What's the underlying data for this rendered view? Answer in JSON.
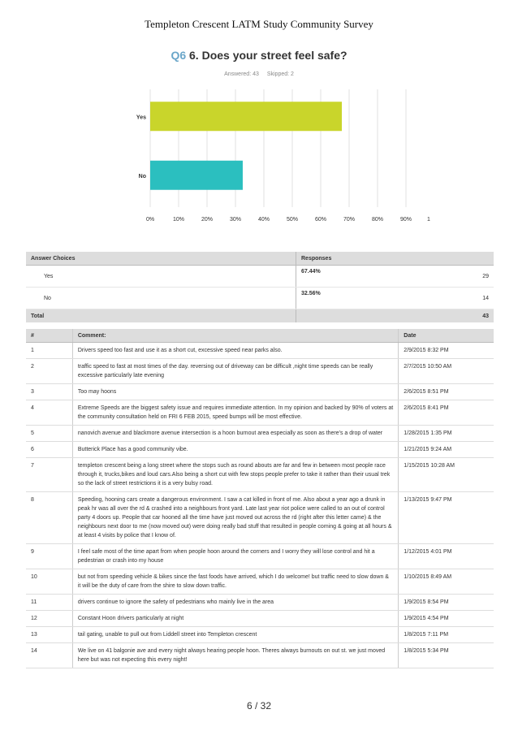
{
  "document": {
    "title": "Templeton Crescent LATM Study Community Survey",
    "page": "6 / 32"
  },
  "question": {
    "number": "Q6",
    "text": "6. Does your street feel safe?",
    "answered": "Answered: 43",
    "skipped": "Skipped: 2"
  },
  "chart_data": {
    "type": "bar",
    "orientation": "horizontal",
    "categories": [
      "Yes",
      "No"
    ],
    "values": [
      67.44,
      32.56
    ],
    "colors": [
      "#c9d52b",
      "#2bbfbf"
    ],
    "xlim": [
      0,
      100
    ],
    "xticks": [
      "0%",
      "10%",
      "20%",
      "30%",
      "40%",
      "50%",
      "60%",
      "70%",
      "80%",
      "90%",
      "100%"
    ]
  },
  "answers": {
    "headers": {
      "choice": "Answer Choices",
      "responses": "Responses"
    },
    "rows": [
      {
        "choice": "Yes",
        "pct": "67.44%",
        "count": "29"
      },
      {
        "choice": "No",
        "pct": "32.56%",
        "count": "14"
      }
    ],
    "total_label": "Total",
    "total": "43"
  },
  "comments": {
    "headers": {
      "num": "#",
      "comment": "Comment:",
      "date": "Date"
    },
    "rows": [
      {
        "num": "1",
        "text": "Drivers speed too fast and use it as a short cut, excessive speed near parks also.",
        "date": "2/9/2015 8:32 PM"
      },
      {
        "num": "2",
        "text": "traffic speed to fast at most times of the day. reversing out of driveway can be difficult ,night time speeds can be really excessive particularly late evening",
        "date": "2/7/2015 10:50 AM"
      },
      {
        "num": "3",
        "text": "Too may hoons",
        "date": "2/6/2015 8:51 PM"
      },
      {
        "num": "4",
        "text": "Extreme Speeds are the biggest safety issue and requires immediate attention. In my opinion and backed by 90% of voters at the community consultation held on FRI 6 FEB 2015, speed bumps will be most effective.",
        "date": "2/6/2015 8:41 PM"
      },
      {
        "num": "5",
        "text": "nanovich avenue and blackmore avenue intersection is a hoon burnout area especially as soon as there's a drop of water",
        "date": "1/28/2015 1:35 PM"
      },
      {
        "num": "6",
        "text": "Butterick Place has a good community vibe.",
        "date": "1/21/2015 9:24 AM"
      },
      {
        "num": "7",
        "text": "templeton crescent being a long street where the stops such as round abouts are far and few in between most people race through it, trucks,bikes and loud cars.Also being a short cut with few stops people prefer to take it rather than their usual trek so the lack of street restrictions it is a very bulsy road.",
        "date": "1/15/2015 10:28 AM"
      },
      {
        "num": "8",
        "text": "Speeding, hooning cars create a dangerous environment. I saw a cat killed in front of me. Also about a year ago a drunk in peak hr was all over the rd & crashed into a neighbours front yard. Late last year riot police were called to an out of control party 4 doors up. People that car hooned all the time have just moved out across the rd (right after this letter came) & the neighbours next door to me (now moved out) were doing really bad stuff that resulted in people coming & going at all hours & at least 4 visits by police that I know of.",
        "date": "1/13/2015 9:47 PM"
      },
      {
        "num": "9",
        "text": "I feel safe most of the time apart from when people hoon around the corners and I worry they will lose control and hit a pedestrian or crash into my house",
        "date": "1/12/2015 4:01 PM"
      },
      {
        "num": "10",
        "text": "but not from speeding vehicle & bikes since the fast foods have arrived, which I do welcome! but traffic need to slow down & it will be the duty of care from the shire to slow down traffic.",
        "date": "1/10/2015 8:49 AM"
      },
      {
        "num": "11",
        "text": "drivers continue to ignore the safety of pedestrians who mainly live in the area",
        "date": "1/9/2015 8:54 PM"
      },
      {
        "num": "12",
        "text": "Constant Hoon drivers particularly at night",
        "date": "1/9/2015 4:54 PM"
      },
      {
        "num": "13",
        "text": "tail gating, unable to pull out from Liddell street into Templeton crescent",
        "date": "1/8/2015 7:11 PM"
      },
      {
        "num": "14",
        "text": "We live on 41 balgonie ave and every night always hearing people hoon. Theres always burnouts on out st. we just moved here but was not expecting this every night!",
        "date": "1/8/2015 5:34 PM"
      }
    ]
  }
}
